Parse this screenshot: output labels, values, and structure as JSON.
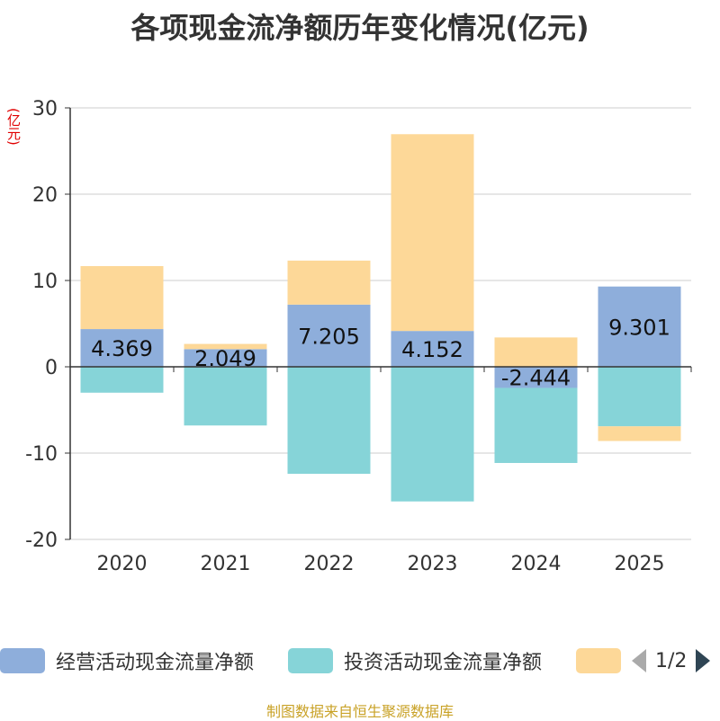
{
  "chart_data": {
    "type": "bar",
    "stacked": true,
    "title": "各项现金流净额历年变化情况(亿元)",
    "ylabel": "(亿元)",
    "ylim": [
      -20,
      30
    ],
    "yticks": [
      -20,
      -10,
      0,
      10,
      20,
      30
    ],
    "grid": true,
    "categories": [
      "2020",
      "2021",
      "2022",
      "2023",
      "2024",
      "2025"
    ],
    "series": [
      {
        "name": "经营活动现金流量净额",
        "color": "#8eaedb",
        "values": [
          4.369,
          2.049,
          7.205,
          4.152,
          -2.444,
          9.301
        ],
        "labels": [
          "4.369",
          "2.049",
          "7.205",
          "4.152",
          "-2.444",
          "9.301"
        ]
      },
      {
        "name": "投资活动现金流量净额",
        "color": "#86d4d8",
        "values": [
          -3.0,
          -6.8,
          -12.4,
          -15.6,
          -8.7,
          -6.9
        ]
      },
      {
        "name": "",
        "color": "#fdd898",
        "values": [
          7.3,
          0.6,
          5.1,
          22.8,
          3.4,
          -1.7
        ]
      }
    ],
    "legend": {
      "page": "1/2",
      "position": "bottom"
    }
  },
  "source": "制图数据来自恒生聚源数据库"
}
